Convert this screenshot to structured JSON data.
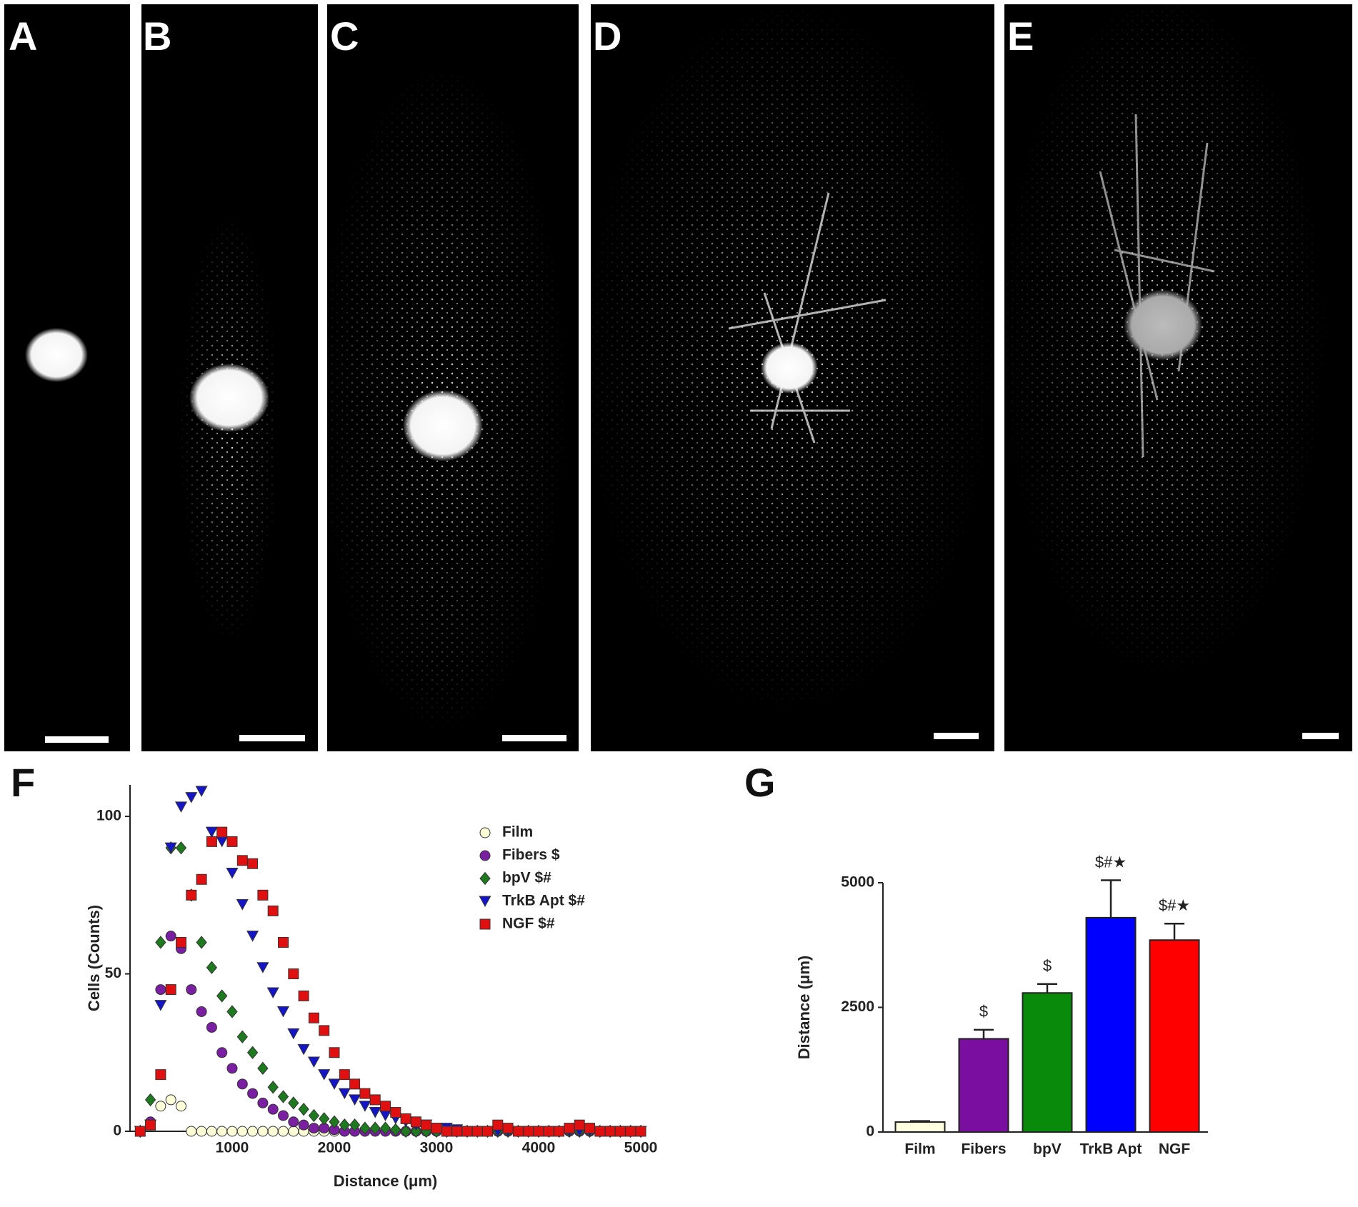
{
  "panels": [
    {
      "label": "A"
    },
    {
      "label": "B"
    },
    {
      "label": "C"
    },
    {
      "label": "D"
    },
    {
      "label": "E"
    }
  ],
  "chart_data": [
    {
      "type": "scatter",
      "panel_label": "F",
      "x_label": "Distance (μm)",
      "y_label": "Cells (Counts)",
      "x": [
        100,
        200,
        300,
        400,
        500,
        600,
        700,
        800,
        900,
        1000,
        1100,
        1200,
        1300,
        1400,
        1500,
        1600,
        1700,
        1800,
        1900,
        2000,
        2100,
        2200,
        2300,
        2400,
        2500,
        2600,
        2700,
        2800,
        2900,
        3000,
        3100,
        3200,
        3300,
        3400,
        3500,
        3600,
        3700,
        3800,
        3900,
        4000,
        4100,
        4200,
        4300,
        4400,
        4500,
        4600,
        4700,
        4800,
        4900,
        5000
      ],
      "series": [
        {
          "name": "Film",
          "color": "#ffffd8",
          "marker": "circle",
          "values": [
            0,
            2,
            8,
            10,
            8,
            0,
            0,
            0,
            0,
            0,
            0,
            0,
            0,
            0,
            0,
            0,
            0,
            0,
            0,
            0,
            0,
            0,
            0,
            0,
            0,
            0,
            0,
            0,
            0,
            0,
            0,
            0,
            0,
            0,
            0,
            0,
            0,
            0,
            0,
            0,
            0,
            0,
            0,
            0,
            0,
            0,
            0,
            0,
            0,
            0
          ]
        },
        {
          "name": "Fibers $",
          "color": "#7a1fa2",
          "marker": "circle",
          "values": [
            0,
            3,
            45,
            62,
            58,
            45,
            38,
            33,
            25,
            20,
            15,
            12,
            9,
            7,
            5,
            3,
            2,
            1,
            1,
            0.5,
            0,
            0,
            0,
            0,
            0,
            0,
            0,
            0,
            0,
            0,
            0,
            0,
            0,
            0,
            0,
            0,
            0,
            0,
            0,
            0,
            0,
            0,
            0,
            0,
            0,
            0,
            0,
            0,
            0,
            0
          ]
        },
        {
          "name": "bpV  $#",
          "color": "#1e7a1e",
          "marker": "diamond",
          "values": [
            0,
            10,
            60,
            90,
            90,
            75,
            60,
            52,
            43,
            38,
            30,
            25,
            20,
            14,
            11,
            9,
            7,
            5,
            4,
            3,
            2,
            2,
            1,
            1,
            1,
            0.5,
            0,
            0,
            0,
            0,
            0,
            0,
            0,
            0,
            0,
            0,
            0,
            0,
            0,
            0,
            0,
            0,
            0,
            0,
            0,
            0,
            0,
            0,
            0,
            0
          ]
        },
        {
          "name": "TrkB Apt $#",
          "color": "#1515c8",
          "marker": "triangle-down",
          "values": [
            0,
            2,
            40,
            90,
            103,
            106,
            108,
            95,
            92,
            82,
            72,
            62,
            52,
            44,
            38,
            31,
            26,
            22,
            18,
            15,
            12,
            10,
            8,
            6,
            5,
            4,
            3,
            2,
            2,
            1,
            1,
            0.5,
            0,
            0,
            0,
            0,
            0,
            0,
            0,
            0,
            0,
            0,
            0,
            0,
            0,
            0,
            0,
            0,
            0,
            0
          ]
        },
        {
          "name": "NGF $#",
          "color": "#e01010",
          "marker": "square",
          "values": [
            0,
            2,
            18,
            45,
            60,
            75,
            80,
            92,
            95,
            92,
            86,
            85,
            75,
            70,
            60,
            50,
            43,
            36,
            32,
            25,
            18,
            15,
            12,
            10,
            8,
            6,
            4,
            3,
            2,
            1,
            0,
            0,
            0,
            0,
            0,
            2,
            1,
            0,
            0,
            0,
            0,
            0,
            1,
            2,
            1,
            0,
            0,
            0,
            0,
            0
          ]
        }
      ],
      "xlim": [
        0,
        5000
      ],
      "xticks": [
        1000,
        2000,
        3000,
        4000,
        5000
      ],
      "ylim": [
        0,
        110
      ],
      "yticks": [
        0,
        50,
        100
      ],
      "legend": "upper-right"
    },
    {
      "type": "bar",
      "panel_label": "G",
      "y_label": "Distance (μm)",
      "categories": [
        "Film",
        "Fibers",
        "bpV",
        "TrkB Apt",
        "NGF"
      ],
      "values": [
        200,
        1870,
        2790,
        4300,
        3850
      ],
      "errors": [
        20,
        180,
        180,
        750,
        330
      ],
      "colors": [
        "#ffffe0",
        "#7a0ea0",
        "#0a8a0a",
        "#0000ff",
        "#ff0000"
      ],
      "annotations": [
        null,
        "$",
        "$",
        "$#★",
        "$#★"
      ],
      "ylim": [
        0,
        5000
      ],
      "yticks": [
        0,
        2500,
        5000
      ]
    }
  ]
}
